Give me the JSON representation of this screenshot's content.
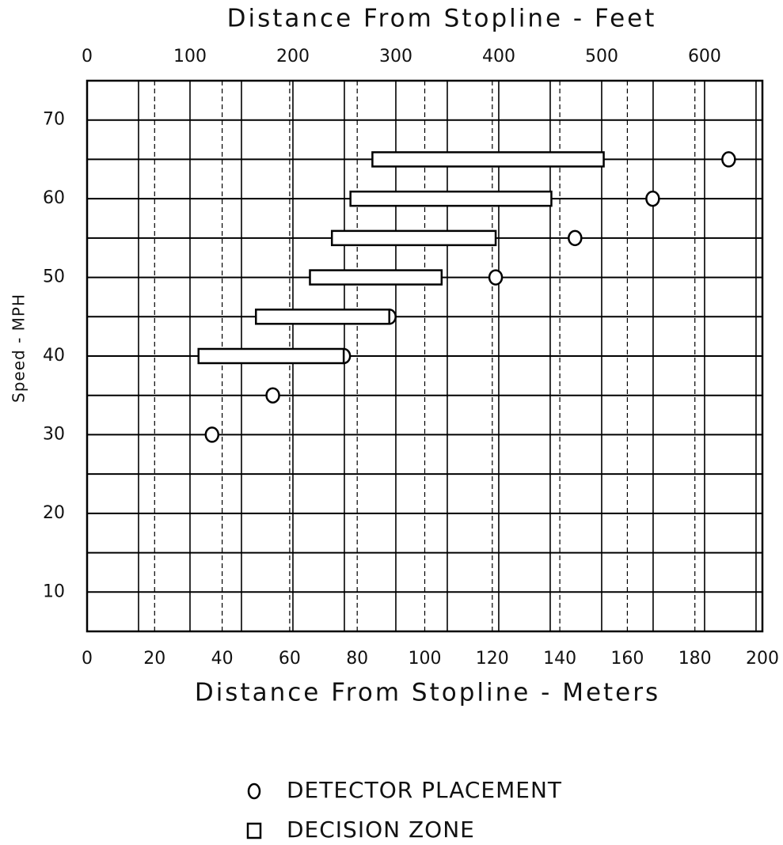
{
  "chart_data": {
    "type": "scatter",
    "title": "Distance From Stopline - Feet",
    "xlabel": "Distance From Stopline - Meters",
    "ylabel": "Speed - MPH",
    "xlim": [
      0,
      200
    ],
    "xticks": [
      0,
      20,
      40,
      60,
      80,
      100,
      120,
      140,
      160,
      180,
      200
    ],
    "x2lim": [
      0,
      656.2
    ],
    "x2ticks": [
      0,
      100,
      200,
      300,
      400,
      500,
      600
    ],
    "x2grid": [
      50,
      100,
      150,
      200,
      250,
      300,
      350,
      400,
      450,
      500,
      550,
      600,
      650
    ],
    "ylim": [
      5,
      75
    ],
    "yticks": [
      10,
      20,
      30,
      40,
      50,
      60,
      70
    ],
    "ygrid": [
      10,
      15,
      20,
      25,
      30,
      35,
      40,
      45,
      50,
      55,
      60,
      65,
      70
    ],
    "series": [
      {
        "name": "DETECTOR PLACEMENT",
        "marker": "circle",
        "y": [
          30,
          35,
          40,
          45,
          50,
          55,
          60,
          65
        ],
        "x": [
          37,
          55,
          76,
          89.5,
          121,
          144.5,
          167.5,
          190
        ]
      },
      {
        "name": "DECISION ZONE",
        "marker": "rect",
        "y": [
          40,
          45,
          50,
          55,
          60,
          65
        ],
        "x_start": [
          33,
          50,
          66,
          72.5,
          78,
          84.5
        ],
        "x_end": [
          76,
          89.5,
          105,
          121,
          137.5,
          153
        ]
      }
    ]
  }
}
